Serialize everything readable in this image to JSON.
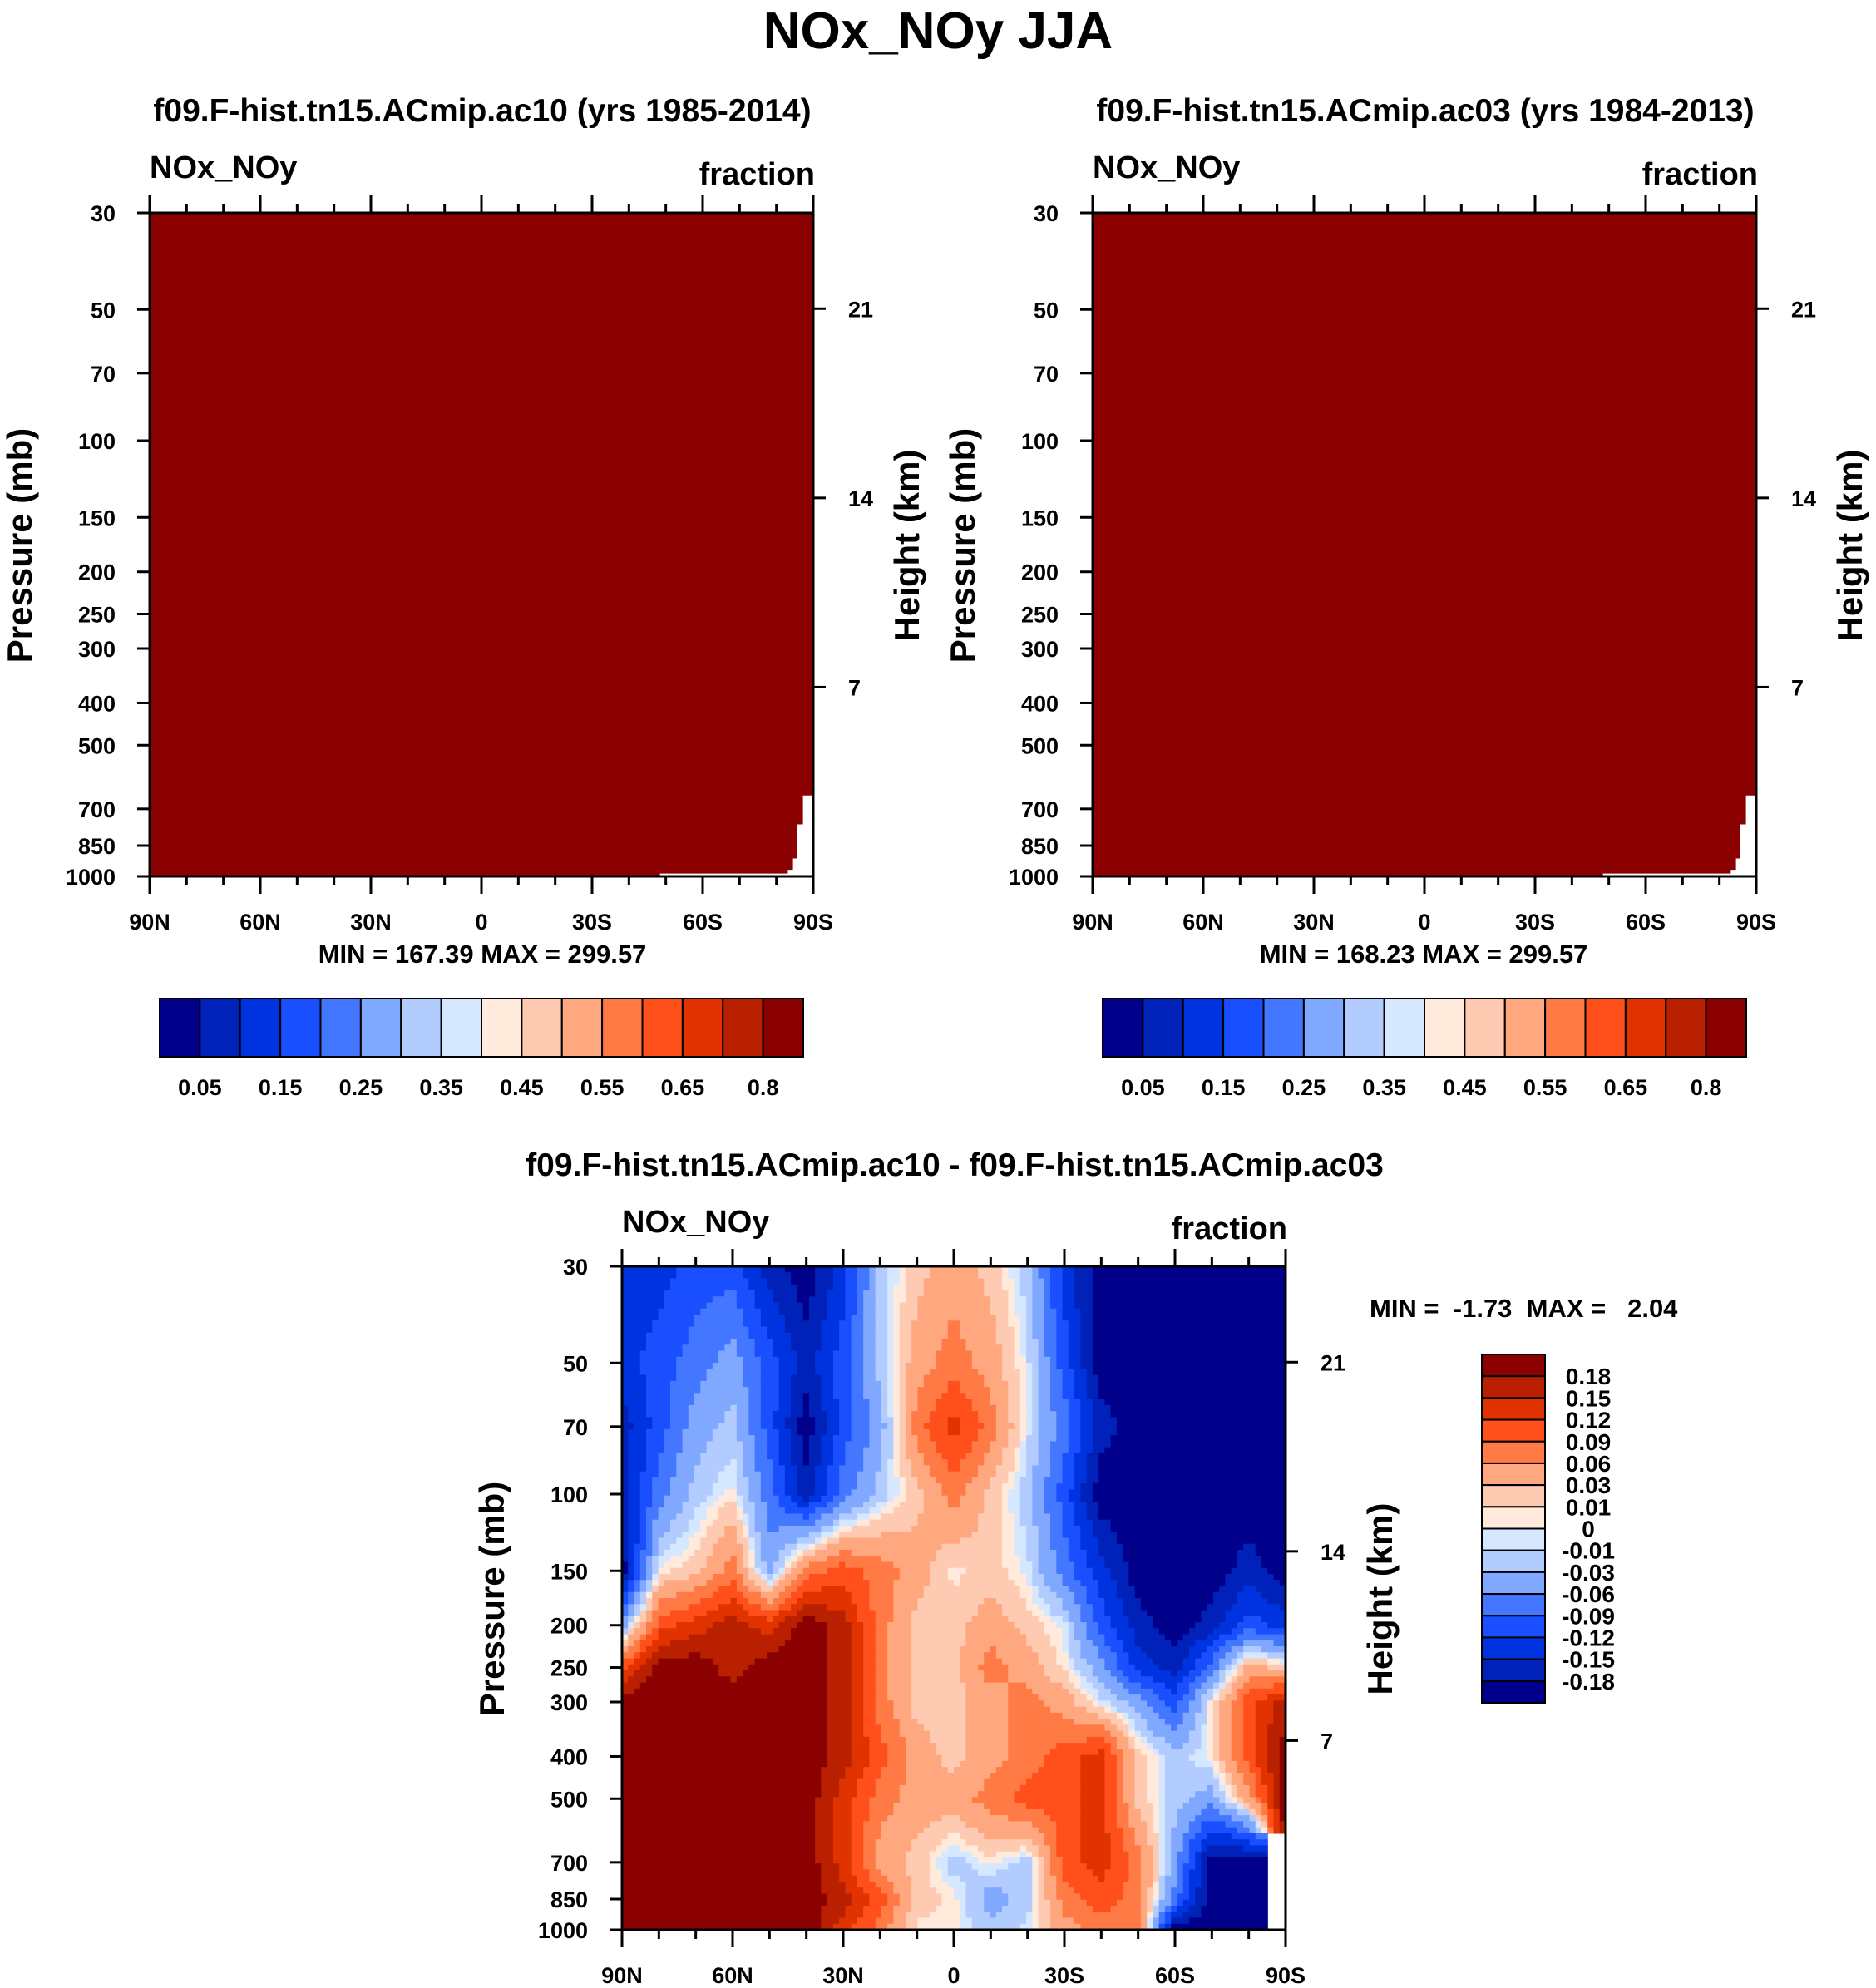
{
  "title": "NOx_NOy JJA",
  "chart_data": [
    {
      "type": "heatmap",
      "title": "f09.F-hist.tn15.ACmip.ac10 (yrs 1985-2014)",
      "left_string": "NOx_NOy",
      "right_string": "fraction",
      "ylabel": "Pressure (mb)",
      "y2label": "Height (km)",
      "x_tick_labels": [
        "90N",
        "60N",
        "30N",
        "0",
        "30S",
        "60S",
        "90S"
      ],
      "x_tick_values": [
        90,
        60,
        30,
        0,
        -30,
        -60,
        -90
      ],
      "xlim": [
        90,
        -90
      ],
      "y_ticks": [
        30,
        50,
        70,
        100,
        150,
        200,
        250,
        300,
        400,
        500,
        700,
        850,
        1000
      ],
      "ylim": [
        1000,
        30
      ],
      "y_scale": "log",
      "y2_ticks": [
        21,
        14,
        7
      ],
      "min_max": "MIN = 167.39  MAX = 299.57",
      "field": "all values >= 0.8",
      "missing_region": [
        [
          -90,
          652
        ],
        [
          -87.2,
          652
        ],
        [
          -87.2,
          760
        ],
        [
          -85.5,
          760
        ],
        [
          -85.5,
          910
        ],
        [
          -84.5,
          910
        ],
        [
          -84.5,
          966
        ],
        [
          -83.1,
          966
        ],
        [
          -83.1,
          985
        ],
        [
          -48.4,
          985
        ],
        [
          -48.4,
          1000
        ],
        [
          -90,
          1000
        ]
      ],
      "colorbar": {
        "orientation": "horizontal",
        "levels": [
          0.05,
          0.1,
          0.15,
          0.2,
          0.25,
          0.3,
          0.35,
          0.4,
          0.45,
          0.5,
          0.55,
          0.6,
          0.65,
          0.7,
          0.8
        ],
        "labels": [
          "0.05",
          "0.15",
          "0.25",
          "0.35",
          "0.45",
          "0.55",
          "0.65",
          "0.8"
        ],
        "colors": [
          "#00008b",
          "#0022b8",
          "#0033e0",
          "#1a4fff",
          "#4477ff",
          "#80a8ff",
          "#b3ccff",
          "#d6e8ff",
          "#ffeadb",
          "#ffcab2",
          "#ffa880",
          "#ff7a45",
          "#ff4f1a",
          "#e03300",
          "#b82000",
          "#8b0000"
        ]
      }
    },
    {
      "type": "heatmap",
      "title": "f09.F-hist.tn15.ACmip.ac03 (yrs 1984-2013)",
      "left_string": "NOx_NOy",
      "right_string": "fraction",
      "ylabel": "Pressure (mb)",
      "y2label": "Height (km)",
      "x_tick_labels": [
        "90N",
        "60N",
        "30N",
        "0",
        "30S",
        "60S",
        "90S"
      ],
      "x_tick_values": [
        90,
        60,
        30,
        0,
        -30,
        -60,
        -90
      ],
      "xlim": [
        90,
        -90
      ],
      "y_ticks": [
        30,
        50,
        70,
        100,
        150,
        200,
        250,
        300,
        400,
        500,
        700,
        850,
        1000
      ],
      "ylim": [
        1000,
        30
      ],
      "y_scale": "log",
      "y2_ticks": [
        21,
        14,
        7
      ],
      "min_max": "MIN = 168.23  MAX = 299.57",
      "field": "all values >= 0.8",
      "missing_region": [
        [
          -90,
          652
        ],
        [
          -87.2,
          652
        ],
        [
          -87.2,
          760
        ],
        [
          -85.5,
          760
        ],
        [
          -85.5,
          910
        ],
        [
          -84.5,
          910
        ],
        [
          -84.5,
          966
        ],
        [
          -83.1,
          966
        ],
        [
          -83.1,
          985
        ],
        [
          -48.4,
          985
        ],
        [
          -48.4,
          1000
        ],
        [
          -90,
          1000
        ]
      ],
      "colorbar": {
        "orientation": "horizontal",
        "levels": [
          0.05,
          0.1,
          0.15,
          0.2,
          0.25,
          0.3,
          0.35,
          0.4,
          0.45,
          0.5,
          0.55,
          0.6,
          0.65,
          0.7,
          0.8
        ],
        "labels": [
          "0.05",
          "0.15",
          "0.25",
          "0.35",
          "0.45",
          "0.55",
          "0.65",
          "0.8"
        ],
        "colors": [
          "#00008b",
          "#0022b8",
          "#0033e0",
          "#1a4fff",
          "#4477ff",
          "#80a8ff",
          "#b3ccff",
          "#d6e8ff",
          "#ffeadb",
          "#ffcab2",
          "#ffa880",
          "#ff7a45",
          "#ff4f1a",
          "#e03300",
          "#b82000",
          "#8b0000"
        ]
      }
    },
    {
      "type": "heatmap",
      "title": "f09.F-hist.tn15.ACmip.ac10 - f09.F-hist.tn15.ACmip.ac03",
      "left_string": "NOx_NOy",
      "right_string": "fraction",
      "ylabel": "Pressure (mb)",
      "y2label": "Height (km)",
      "x_tick_labels": [
        "90N",
        "60N",
        "30N",
        "0",
        "30S",
        "60S",
        "90S"
      ],
      "x_tick_values": [
        90,
        60,
        30,
        0,
        -30,
        -60,
        -90
      ],
      "xlim": [
        90,
        -90
      ],
      "y_ticks": [
        30,
        50,
        70,
        100,
        150,
        200,
        250,
        300,
        400,
        500,
        700,
        850,
        1000
      ],
      "ylim": [
        1000,
        30
      ],
      "y_scale": "log",
      "y2_ticks": [
        21,
        14,
        7
      ],
      "min_max": "MIN =  -1.73  MAX =   2.04",
      "grid_lat": [
        90,
        80,
        70,
        60,
        50,
        40,
        30,
        20,
        10,
        0,
        -10,
        -20,
        -30,
        -40,
        -50,
        -60,
        -70,
        -80,
        -90
      ],
      "grid_pressure": [
        30,
        50,
        70,
        100,
        150,
        200,
        250,
        300,
        400,
        500,
        700,
        850,
        1000
      ],
      "values": [
        [
          -0.135,
          -0.135,
          -0.105,
          -0.105,
          -0.165,
          -0.2,
          -0.135,
          -0.02,
          0.02,
          0.045,
          0.02,
          -0.02,
          -0.135,
          -0.2,
          -0.2,
          -0.2,
          -0.2,
          -0.2,
          -0.2
        ],
        [
          -0.135,
          -0.105,
          -0.075,
          -0.045,
          -0.105,
          -0.165,
          -0.105,
          -0.02,
          0.045,
          0.075,
          0.045,
          -0.005,
          -0.105,
          -0.2,
          -0.2,
          -0.2,
          -0.2,
          -0.2,
          -0.2
        ],
        [
          -0.165,
          -0.105,
          -0.045,
          -0.02,
          -0.105,
          -0.2,
          -0.105,
          -0.045,
          0.075,
          0.135,
          0.075,
          -0.005,
          -0.075,
          -0.165,
          -0.2,
          -0.2,
          -0.2,
          -0.2,
          -0.2
        ],
        [
          -0.165,
          -0.075,
          -0.02,
          0.005,
          -0.075,
          -0.165,
          -0.075,
          -0.02,
          0.02,
          0.075,
          0.02,
          -0.02,
          -0.105,
          -0.2,
          -0.2,
          -0.2,
          -0.2,
          -0.2,
          -0.2
        ],
        [
          -0.2,
          0.005,
          0.02,
          0.075,
          -0.045,
          0.075,
          0.105,
          0.075,
          0.045,
          0.005,
          0.02,
          -0.005,
          -0.075,
          -0.135,
          -0.2,
          -0.2,
          -0.2,
          -0.165,
          -0.2
        ],
        [
          -0.045,
          0.105,
          0.135,
          0.165,
          0.135,
          0.2,
          0.165,
          0.075,
          0.02,
          0.02,
          0.045,
          0.02,
          -0.005,
          -0.105,
          -0.165,
          -0.2,
          -0.165,
          -0.105,
          -0.135
        ],
        [
          0.105,
          0.2,
          0.2,
          0.165,
          0.2,
          0.2,
          0.165,
          0.075,
          0.02,
          0.02,
          0.075,
          0.045,
          0.005,
          -0.045,
          -0.135,
          -0.165,
          -0.075,
          0.045,
          0.02
        ],
        [
          0.2,
          0.2,
          0.2,
          0.2,
          0.2,
          0.2,
          0.165,
          0.075,
          0.02,
          0.02,
          0.045,
          0.075,
          0.045,
          -0.005,
          -0.045,
          -0.105,
          0.005,
          0.105,
          0.165
        ],
        [
          0.2,
          0.2,
          0.2,
          0.2,
          0.2,
          0.2,
          0.165,
          0.105,
          0.045,
          0.02,
          0.045,
          0.075,
          0.105,
          0.135,
          0.02,
          -0.02,
          0.005,
          0.105,
          0.2
        ],
        [
          0.2,
          0.2,
          0.2,
          0.2,
          0.2,
          0.2,
          0.135,
          0.075,
          0.045,
          0.045,
          0.075,
          0.105,
          0.105,
          0.135,
          0.02,
          -0.02,
          -0.045,
          0.045,
          0.2
        ],
        [
          0.2,
          0.2,
          0.2,
          0.2,
          0.2,
          0.2,
          0.135,
          0.045,
          0.02,
          -0.02,
          0.005,
          -0.02,
          0.105,
          0.135,
          0.075,
          -0.045,
          -0.2,
          -0.2,
          null
        ],
        [
          0.2,
          0.2,
          0.2,
          0.2,
          0.2,
          0.2,
          0.165,
          0.105,
          0.02,
          0.005,
          -0.045,
          -0.02,
          0.075,
          0.105,
          0.075,
          -0.075,
          -0.2,
          -0.2,
          null
        ],
        [
          0.2,
          0.2,
          0.2,
          0.2,
          0.2,
          0.2,
          0.135,
          0.075,
          0.005,
          0.005,
          -0.02,
          -0.005,
          0.045,
          0.075,
          0.075,
          -0.2,
          -0.2,
          -0.2,
          null
        ]
      ],
      "colorbar": {
        "orientation": "vertical",
        "levels": [
          -0.18,
          -0.15,
          -0.12,
          -0.09,
          -0.06,
          -0.03,
          -0.01,
          0,
          0.01,
          0.03,
          0.06,
          0.09,
          0.12,
          0.15,
          0.18
        ],
        "labels": [
          "-0.18",
          "-0.15",
          "-0.12",
          "-0.09",
          "-0.06",
          "-0.03",
          "-0.01",
          "0",
          "0.01",
          "0.03",
          "0.06",
          "0.09",
          "0.12",
          "0.15",
          "0.18"
        ],
        "colors": [
          "#00008b",
          "#0022b8",
          "#0033e0",
          "#1a4fff",
          "#4477ff",
          "#80a8ff",
          "#b3ccff",
          "#d6e8ff",
          "#ffeadb",
          "#ffcab2",
          "#ffa880",
          "#ff7a45",
          "#ff4f1a",
          "#e03300",
          "#b82000",
          "#8b0000"
        ]
      }
    }
  ]
}
